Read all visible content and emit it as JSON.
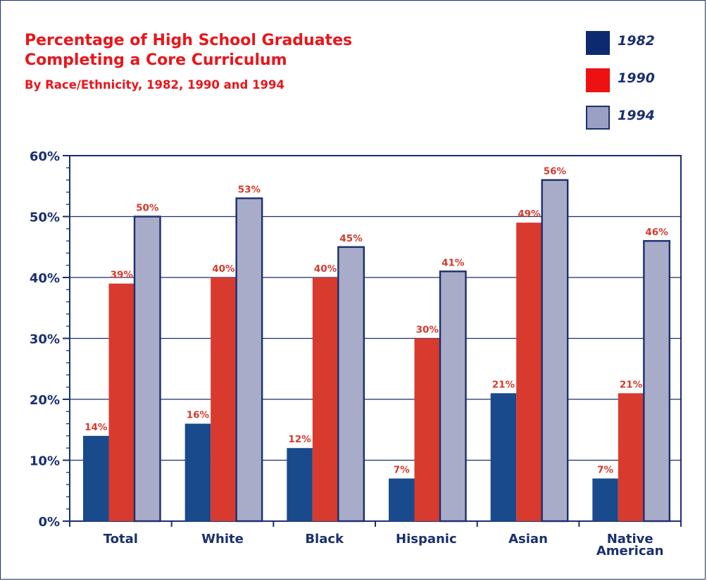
{
  "chart_data": {
    "type": "bar",
    "title_lines": [
      "Percentage of High School Graduates",
      "Completing a Core Curriculum"
    ],
    "subtitle": "By Race/Ethnicity, 1982, 1990 and 1994",
    "categories": [
      {
        "lines": [
          "Total"
        ]
      },
      {
        "lines": [
          "White"
        ]
      },
      {
        "lines": [
          "Black"
        ]
      },
      {
        "lines": [
          "Hispanic"
        ]
      },
      {
        "lines": [
          "Asian"
        ]
      },
      {
        "lines": [
          "Native",
          "American"
        ]
      }
    ],
    "series": [
      {
        "name": "1982",
        "color": "#184a8c",
        "values": [
          14,
          16,
          12,
          7,
          21,
          7
        ]
      },
      {
        "name": "1990",
        "color": "#d93a2e",
        "values": [
          39,
          40,
          40,
          30,
          49,
          21
        ]
      },
      {
        "name": "1994",
        "color": "#a9acc9",
        "values": [
          50,
          53,
          45,
          41,
          56,
          46
        ]
      }
    ],
    "value_labels": [
      [
        "14%",
        "16%",
        "12%",
        "7%",
        "21%",
        "7%"
      ],
      [
        "39%",
        "40%",
        "40%",
        "30%",
        "49%",
        "21%"
      ],
      [
        "50%",
        "53%",
        "45%",
        "41%",
        "56%",
        "46%"
      ]
    ],
    "y_ticks": [
      {
        "value": 0,
        "label": "0%"
      },
      {
        "value": 10,
        "label": "10%"
      },
      {
        "value": 20,
        "label": "20%"
      },
      {
        "value": 30,
        "label": "30%"
      },
      {
        "value": 40,
        "label": "40%"
      },
      {
        "value": 50,
        "label": "50%"
      },
      {
        "value": 60,
        "label": "60%"
      }
    ],
    "ylim": [
      0,
      60
    ],
    "grid": true,
    "legend_position": "top-right",
    "legend_swatch_colors": [
      "#0d2a70",
      "#ee1111",
      "#9aa0c4"
    ],
    "axis_color": "#1a2f6e",
    "label_color": "#d43a2c"
  }
}
